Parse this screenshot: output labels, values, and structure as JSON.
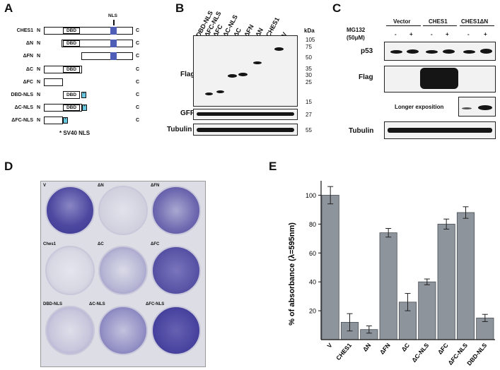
{
  "panels": {
    "a": "A",
    "b": "B",
    "c": "C",
    "d": "D",
    "e": "E"
  },
  "panel_a": {
    "nls_top": "NLS",
    "n": "N",
    "c": "C",
    "dbd": "DBD",
    "rows": [
      "CHES1",
      "ΔN",
      "ΔFN",
      "ΔC",
      "ΔFC",
      "DBD-NLS",
      "ΔC-NLS",
      "ΔFC-NLS"
    ],
    "star": "*",
    "footnote": "* SV40 NLS"
  },
  "panel_b": {
    "lanes": [
      "DBD-NLS",
      "ΔFC-NLS",
      "ΔFC",
      "ΔC-NLS",
      "ΔC",
      "ΔFN",
      "ΔN",
      "CHES1",
      "V"
    ],
    "kda": "kDa",
    "markers_flag": [
      "105",
      "75",
      "50",
      "35",
      "30",
      "25",
      "15"
    ],
    "labels": {
      "flag": "Flag",
      "gfp": "GFP",
      "tubulin": "Tubulin"
    },
    "gfp_kda": "27",
    "tubulin_kda": "55"
  },
  "panel_c": {
    "groups": [
      "Vector",
      "CHES1",
      "CHES1ΔN"
    ],
    "mg132_line1": "MG132",
    "mg132_line2": "(50μM)",
    "signs": [
      "-",
      "+",
      "-",
      "+",
      "-",
      "+"
    ],
    "labels": {
      "p53": "p53",
      "flag": "Flag",
      "longer": "Longer exposition",
      "tubulin": "Tubulin"
    }
  },
  "panel_d": {
    "wells": [
      "V",
      "ΔN",
      "ΔFN",
      "Ches1",
      "ΔC",
      "ΔFC",
      "DBD-NLS",
      "ΔC-NLS",
      "ΔFC-NLS"
    ]
  },
  "chart_data": {
    "type": "bar",
    "categories": [
      "V",
      "CHES1",
      "ΔN",
      "ΔFN",
      "ΔC",
      "ΔC-NLS",
      "ΔFC",
      "ΔFC-NLS",
      "DBD-NLS"
    ],
    "values": [
      100,
      12,
      7,
      74,
      26,
      40,
      80,
      88,
      15
    ],
    "errors": [
      6,
      6,
      2.5,
      3,
      6,
      2,
      3.5,
      4,
      2.5
    ],
    "ylabel": "% of absorbance (λ=595nm)",
    "ylim": [
      0,
      110
    ],
    "yticks": [
      20,
      40,
      60,
      80,
      100
    ],
    "bar_color": "#8e949b"
  }
}
